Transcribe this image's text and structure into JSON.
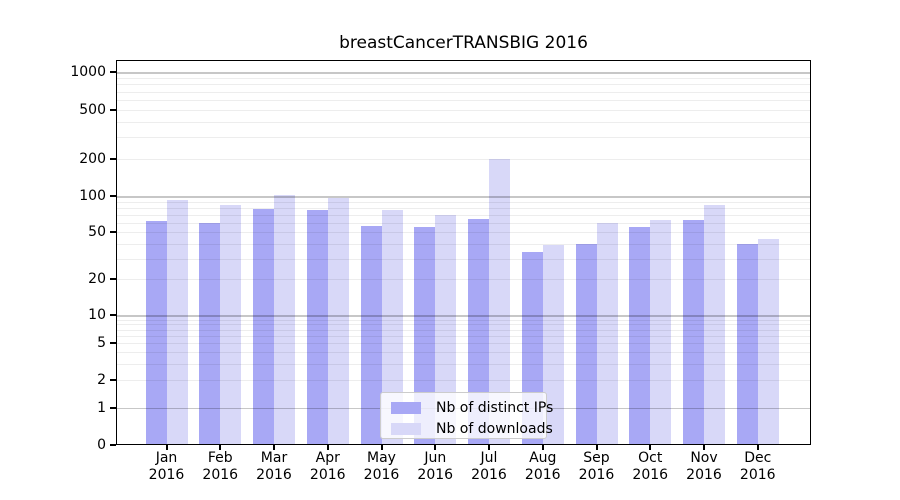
{
  "figure": {
    "background": "#ffffff",
    "frame_color": "#000000",
    "grid_minor_color": "#ececec",
    "grid_major_color": "#c8c8c8"
  },
  "chart_data": {
    "type": "bar",
    "title": "breastCancerTRANSBIG 2016",
    "year_label": "2016",
    "categories": [
      "Jan",
      "Feb",
      "Mar",
      "Apr",
      "May",
      "Jun",
      "Jul",
      "Aug",
      "Sep",
      "Oct",
      "Nov",
      "Dec"
    ],
    "series": [
      {
        "name": "Nb of distinct IPs",
        "color": "#a8a8f5",
        "values": [
          62,
          60,
          78,
          77,
          56,
          55,
          65,
          34,
          40,
          55,
          63,
          40
        ]
      },
      {
        "name": "Nb of downloads",
        "color": "#d8d8f8",
        "values": [
          93,
          85,
          103,
          96,
          77,
          70,
          199,
          39,
          60,
          63,
          85,
          44
        ]
      }
    ],
    "xlabel": "",
    "ylabel": "",
    "y_ticks": [
      1000,
      500,
      200,
      100,
      50,
      20,
      10,
      5,
      2,
      1,
      0
    ],
    "ylim": [
      0,
      1000
    ],
    "yscale": "log (zero pinned at baseline)",
    "grid": "horizontal major + minor",
    "legend_position": "lower center"
  }
}
